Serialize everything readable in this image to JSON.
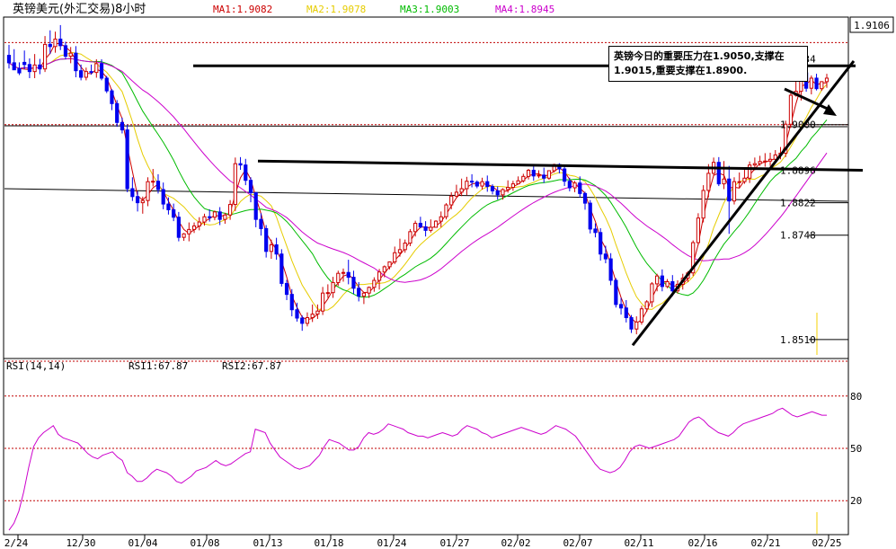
{
  "header": {
    "title": "英镑美元(外汇交易)8小时",
    "ma_labels": [
      {
        "text": "MA1:1.9082",
        "color": "#cc0000"
      },
      {
        "text": "MA2:1.9078",
        "color": "#e6cc00"
      },
      {
        "text": "MA3:1.9003",
        "color": "#00bb00"
      },
      {
        "text": "MA4:1.8945",
        "color": "#cc00cc"
      }
    ],
    "last_price": "1.9106"
  },
  "annotation": {
    "text": "英镑今日的重要压力在1.9050,支撑在1.9015,重要支撑在1.8900."
  },
  "rsi_header": {
    "name": "RSI(14,14)",
    "rsi1": "RSI1:67.87",
    "rsi2": "RSI2:67.87"
  },
  "chart_data": [
    {
      "type": "candlestick",
      "title": "英镑美元(外汇交易)8小时",
      "x_tick_labels": [
        "2/24",
        "12/30",
        "01/04",
        "01/08",
        "01/13",
        "01/18",
        "01/24",
        "01/27",
        "02/02",
        "02/07",
        "02/11",
        "02/16",
        "02/21",
        "02/25"
      ],
      "y_tick_labels": [
        "1.9000",
        "1.8896",
        "1.8822",
        "1.8748",
        "1.8510"
      ],
      "y_ticks": [
        1.9,
        1.8896,
        1.8822,
        1.8748,
        1.851
      ],
      "ylim": [
        1.8475,
        1.9235
      ],
      "high_mark": "1.9134",
      "candles_approx": [
        [
          1.9158,
          1.9182,
          1.9141,
          1.9128
        ],
        [
          1.9141,
          1.9172,
          1.9125,
          1.9141
        ],
        [
          1.9128,
          1.9142,
          1.9118,
          1.9113
        ],
        [
          1.9142,
          1.9169,
          1.9137,
          1.9126
        ],
        [
          1.9137,
          1.9151,
          1.9121,
          1.9106
        ],
        [
          1.9121,
          1.9161,
          1.9136,
          1.9106
        ],
        [
          1.9136,
          1.915,
          1.9127,
          1.9115
        ],
        [
          1.9127,
          1.9202,
          1.9183,
          1.912
        ],
        [
          1.9183,
          1.9215,
          1.9178,
          1.9161
        ],
        [
          1.9178,
          1.9212,
          1.9195,
          1.9164
        ],
        [
          1.9195,
          1.9227,
          1.918,
          1.917
        ],
        [
          1.918,
          1.9189,
          1.9156,
          1.9149
        ],
        [
          1.9156,
          1.9177,
          1.9163,
          1.914
        ],
        [
          1.9163,
          1.9179,
          1.9123,
          1.9108
        ],
        [
          1.9123,
          1.9137,
          1.9108,
          1.9101
        ],
        [
          1.9108,
          1.913,
          1.9121,
          1.9101
        ],
        [
          1.9121,
          1.9137,
          1.9119,
          1.9114
        ],
        [
          1.9119,
          1.9149,
          1.9139,
          1.9107
        ],
        [
          1.9139,
          1.9149,
          1.9106,
          1.9101
        ],
        [
          1.9106,
          1.9111,
          1.9077,
          1.9072
        ],
        [
          1.9077,
          1.9081,
          1.9048,
          1.9033
        ],
        [
          1.9048,
          1.9056,
          1.9005,
          1.8995
        ],
        [
          1.9005,
          1.9016,
          1.8988,
          1.898
        ],
        [
          1.8988,
          1.9,
          1.8854,
          1.8846
        ],
        [
          1.8854,
          1.888,
          1.8836,
          1.8826
        ],
        [
          1.8836,
          1.8848,
          1.8822,
          1.8802
        ],
        [
          1.8822,
          1.8836,
          1.8827,
          1.8797
        ],
        [
          1.8827,
          1.888,
          1.887,
          1.8814
        ],
        [
          1.887,
          1.8899,
          1.8871,
          1.8859
        ],
        [
          1.8871,
          1.8887,
          1.8852,
          1.8843
        ],
        [
          1.8852,
          1.8868,
          1.8819,
          1.8807
        ],
        [
          1.8819,
          1.8834,
          1.8806,
          1.8795
        ],
        [
          1.8806,
          1.882,
          1.8789,
          1.878
        ],
        [
          1.8789,
          1.8801,
          1.8743,
          1.8734
        ],
        [
          1.8743,
          1.8753,
          1.8751,
          1.8735
        ],
        [
          1.8751,
          1.8777,
          1.8761,
          1.8734
        ],
        [
          1.8761,
          1.8777,
          1.8769,
          1.8753
        ],
        [
          1.8769,
          1.8789,
          1.8778,
          1.8759
        ],
        [
          1.8778,
          1.8797,
          1.879,
          1.877
        ],
        [
          1.879,
          1.8807,
          1.8789,
          1.8779
        ],
        [
          1.8789,
          1.8804,
          1.8801,
          1.8782
        ],
        [
          1.8801,
          1.8812,
          1.8784,
          1.8771
        ],
        [
          1.8784,
          1.8799,
          1.8794,
          1.8774
        ],
        [
          1.8794,
          1.8828,
          1.8818,
          1.8783
        ],
        [
          1.8818,
          1.8925,
          1.8911,
          1.8803
        ],
        [
          1.8911,
          1.8926,
          1.8908,
          1.8897
        ],
        [
          1.8908,
          1.8922,
          1.8873,
          1.8862
        ],
        [
          1.8873,
          1.888,
          1.8845,
          1.8823
        ],
        [
          1.8845,
          1.8846,
          1.8784,
          1.8766
        ],
        [
          1.8784,
          1.8798,
          1.8763,
          1.8747
        ],
        [
          1.8763,
          1.8771,
          1.8711,
          1.8697
        ],
        [
          1.8711,
          1.8738,
          1.8726,
          1.8694
        ],
        [
          1.8726,
          1.8742,
          1.8705,
          1.8692
        ],
        [
          1.8705,
          1.8716,
          1.8638,
          1.8631
        ],
        [
          1.8638,
          1.8646,
          1.8613,
          1.86
        ],
        [
          1.8613,
          1.8625,
          1.8578,
          1.8563
        ],
        [
          1.8578,
          1.8594,
          1.8559,
          1.8551
        ],
        [
          1.8559,
          1.8565,
          1.8547,
          1.853
        ],
        [
          1.8547,
          1.8572,
          1.856,
          1.854
        ],
        [
          1.856,
          1.859,
          1.8568,
          1.855
        ],
        [
          1.8568,
          1.859,
          1.8575,
          1.8557
        ],
        [
          1.8575,
          1.863,
          1.8616,
          1.8566
        ],
        [
          1.8616,
          1.8636,
          1.8617,
          1.8605
        ],
        [
          1.8617,
          1.8653,
          1.864,
          1.8605
        ],
        [
          1.864,
          1.8667,
          1.8661,
          1.8632
        ],
        [
          1.8661,
          1.8672,
          1.8663,
          1.8642
        ],
        [
          1.8663,
          1.8692,
          1.8652,
          1.8636
        ],
        [
          1.8652,
          1.8667,
          1.8627,
          1.8614
        ],
        [
          1.8627,
          1.8641,
          1.8609,
          1.8597
        ],
        [
          1.8609,
          1.8618,
          1.8616,
          1.8591
        ],
        [
          1.8616,
          1.8631,
          1.8629,
          1.8605
        ],
        [
          1.8629,
          1.8652,
          1.8645,
          1.8619
        ],
        [
          1.8645,
          1.8671,
          1.8664,
          1.8624
        ],
        [
          1.8664,
          1.8679,
          1.8676,
          1.8652
        ],
        [
          1.8676,
          1.8688,
          1.8687,
          1.867
        ],
        [
          1.8687,
          1.8722,
          1.8708,
          1.8682
        ],
        [
          1.8708,
          1.874,
          1.8715,
          1.8699
        ],
        [
          1.8715,
          1.8738,
          1.873,
          1.8708
        ],
        [
          1.873,
          1.8762,
          1.8756,
          1.8723
        ],
        [
          1.8756,
          1.8781,
          1.8775,
          1.8745
        ],
        [
          1.8775,
          1.879,
          1.8767,
          1.8764
        ],
        [
          1.8767,
          1.878,
          1.8759,
          1.8745
        ],
        [
          1.8759,
          1.8784,
          1.8766,
          1.8754
        ],
        [
          1.8766,
          1.8782,
          1.878,
          1.8765
        ],
        [
          1.878,
          1.8802,
          1.879,
          1.8766
        ],
        [
          1.879,
          1.8821,
          1.8817,
          1.8784
        ],
        [
          1.8817,
          1.8846,
          1.8837,
          1.8807
        ],
        [
          1.8837,
          1.8863,
          1.8846,
          1.8835
        ],
        [
          1.8846,
          1.8877,
          1.8854,
          1.8837
        ],
        [
          1.8854,
          1.8881,
          1.8871,
          1.8839
        ],
        [
          1.8871,
          1.8887,
          1.8869,
          1.8857
        ],
        [
          1.8869,
          1.8873,
          1.886,
          1.8855
        ],
        [
          1.886,
          1.8879,
          1.887,
          1.8852
        ],
        [
          1.887,
          1.8884,
          1.8859,
          1.8847
        ],
        [
          1.8859,
          1.8864,
          1.8849,
          1.8841
        ],
        [
          1.8849,
          1.8859,
          1.884,
          1.8829
        ],
        [
          1.884,
          1.8855,
          1.8852,
          1.8829
        ],
        [
          1.8852,
          1.8873,
          1.8857,
          1.8845
        ],
        [
          1.8857,
          1.8872,
          1.8865,
          1.8849
        ],
        [
          1.8865,
          1.8882,
          1.8872,
          1.8864
        ],
        [
          1.8872,
          1.8888,
          1.8882,
          1.8868
        ],
        [
          1.8882,
          1.8899,
          1.8896,
          1.8875
        ],
        [
          1.8896,
          1.8909,
          1.8883,
          1.8872
        ],
        [
          1.8883,
          1.8896,
          1.8885,
          1.8878
        ],
        [
          1.8885,
          1.8902,
          1.8878,
          1.8867
        ],
        [
          1.8878,
          1.8896,
          1.8895,
          1.8874
        ],
        [
          1.8895,
          1.8911,
          1.8909,
          1.8891
        ],
        [
          1.8909,
          1.8912,
          1.8899,
          1.8889
        ],
        [
          1.8899,
          1.8905,
          1.8871,
          1.886
        ],
        [
          1.8871,
          1.8879,
          1.8856,
          1.8848
        ],
        [
          1.8856,
          1.8872,
          1.8867,
          1.8846
        ],
        [
          1.8867,
          1.8882,
          1.8843,
          1.8834
        ],
        [
          1.8843,
          1.8847,
          1.8821,
          1.8806
        ],
        [
          1.8821,
          1.8828,
          1.8762,
          1.8752
        ],
        [
          1.8762,
          1.8775,
          1.8754,
          1.8743
        ],
        [
          1.8754,
          1.8764,
          1.8705,
          1.869
        ],
        [
          1.8705,
          1.8724,
          1.8694,
          1.8684
        ],
        [
          1.8694,
          1.8707,
          1.8645,
          1.8634
        ],
        [
          1.8645,
          1.865,
          1.859,
          1.8583
        ],
        [
          1.859,
          1.8605,
          1.8582,
          1.8567
        ],
        [
          1.8582,
          1.86,
          1.856,
          1.8549
        ],
        [
          1.856,
          1.8566,
          1.8534,
          1.8525
        ],
        [
          1.8534,
          1.8563,
          1.855,
          1.8522
        ],
        [
          1.855,
          1.8587,
          1.858,
          1.8544
        ],
        [
          1.858,
          1.86,
          1.8596,
          1.8573
        ],
        [
          1.8596,
          1.8641,
          1.8637,
          1.8584
        ],
        [
          1.8637,
          1.866,
          1.8655,
          1.862
        ],
        [
          1.8655,
          1.867,
          1.8631,
          1.862
        ],
        [
          1.8631,
          1.8648,
          1.8642,
          1.8627
        ],
        [
          1.8642,
          1.8657,
          1.8621,
          1.8609
        ],
        [
          1.8621,
          1.8645,
          1.8636,
          1.8615
        ],
        [
          1.8636,
          1.866,
          1.865,
          1.8624
        ],
        [
          1.865,
          1.8666,
          1.8662,
          1.8641
        ],
        [
          1.8662,
          1.8736,
          1.8731,
          1.8655
        ],
        [
          1.8731,
          1.8798,
          1.8787,
          1.8725
        ],
        [
          1.8787,
          1.8862,
          1.885,
          1.8777
        ],
        [
          1.885,
          1.891,
          1.8889,
          1.8834
        ],
        [
          1.8889,
          1.8925,
          1.8914,
          1.8883
        ],
        [
          1.8914,
          1.8926,
          1.8865,
          1.886
        ],
        [
          1.8865,
          1.8917,
          1.8876,
          1.8853
        ],
        [
          1.8876,
          1.8906,
          1.8826,
          1.8751
        ],
        [
          1.8826,
          1.888,
          1.887,
          1.8818
        ],
        [
          1.887,
          1.8891,
          1.887,
          1.8855
        ],
        [
          1.887,
          1.8897,
          1.8878,
          1.8865
        ],
        [
          1.8878,
          1.8916,
          1.8908,
          1.8867
        ],
        [
          1.8908,
          1.8925,
          1.8911,
          1.8896
        ],
        [
          1.8911,
          1.8929,
          1.8916,
          1.8906
        ],
        [
          1.8916,
          1.8935,
          1.8917,
          1.8904
        ],
        [
          1.8917,
          1.8936,
          1.8921,
          1.8906
        ],
        [
          1.8921,
          1.8942,
          1.8931,
          1.8914
        ],
        [
          1.8931,
          1.8949,
          1.8935,
          1.8921
        ],
        [
          1.8935,
          1.9009,
          1.9001,
          1.8926
        ],
        [
          1.9001,
          1.9072,
          1.9067,
          1.8993
        ],
        [
          1.9067,
          1.9121,
          1.9076,
          1.9064
        ],
        [
          1.9076,
          1.9124,
          1.9118,
          1.9055
        ],
        [
          1.9118,
          1.9134,
          1.9083,
          1.9075
        ],
        [
          1.9083,
          1.9112,
          1.9106,
          1.9069
        ],
        [
          1.9106,
          1.9116,
          1.9082,
          1.9078
        ],
        [
          1.9082,
          1.9099,
          1.9098,
          1.9077
        ],
        [
          1.9098,
          1.9116,
          1.9106,
          1.9084
        ]
      ],
      "moving_averages": [
        {
          "name": "MA1",
          "value": 1.9082,
          "color": "#cc0000"
        },
        {
          "name": "MA2",
          "value": 1.9078,
          "color": "#e6cc00"
        },
        {
          "name": "MA3",
          "value": 1.9003,
          "color": "#00bb00"
        },
        {
          "name": "MA4",
          "value": 1.8945,
          "color": "#cc00cc"
        }
      ],
      "colors": {
        "up": "#cc0000",
        "down": "#0000ee"
      },
      "grid": "dotted red horizontal lines"
    },
    {
      "type": "line",
      "title": "RSI(14,14)",
      "y_tick_labels": [
        "80",
        "50",
        "20"
      ],
      "y_ticks": [
        80,
        50,
        20
      ],
      "ylim": [
        0,
        100
      ],
      "series": [
        {
          "name": "RSI1:67.87",
          "color": "#cc00cc",
          "values_approx": [
            2,
            6,
            13,
            24,
            38,
            50,
            55,
            58,
            60,
            62,
            57,
            55,
            54,
            53,
            52,
            49,
            46,
            44,
            43,
            45,
            46,
            47,
            44,
            42,
            35,
            33,
            30,
            30,
            32,
            35,
            37,
            36,
            35,
            33,
            30,
            29,
            31,
            33,
            36,
            37,
            38,
            40,
            42,
            40,
            39,
            40,
            42,
            44,
            46,
            47,
            60,
            59,
            58,
            52,
            48,
            44,
            42,
            40,
            38,
            37,
            38,
            39,
            42,
            45,
            50,
            54,
            53,
            52,
            50,
            48,
            48,
            50,
            55,
            58,
            57,
            58,
            60,
            63,
            62,
            61,
            60,
            58,
            57,
            56,
            56,
            55,
            56,
            57,
            58,
            57,
            56,
            57,
            60,
            62,
            61,
            60,
            58,
            57,
            55,
            56,
            57,
            58,
            59,
            60,
            61,
            60,
            59,
            58,
            57,
            58,
            60,
            62,
            61,
            60,
            58,
            56,
            52,
            48,
            44,
            40,
            37,
            36,
            35,
            36,
            38,
            42,
            47,
            50,
            51,
            50,
            49,
            50,
            51,
            52,
            53,
            54,
            56,
            60,
            64,
            66,
            67,
            65,
            62,
            60,
            58,
            57,
            56,
            58,
            61,
            63,
            64,
            65,
            66,
            67,
            68,
            69,
            71,
            72,
            70,
            68,
            67,
            68,
            69,
            70,
            69,
            68,
            68
          ]
        }
      ]
    }
  ]
}
